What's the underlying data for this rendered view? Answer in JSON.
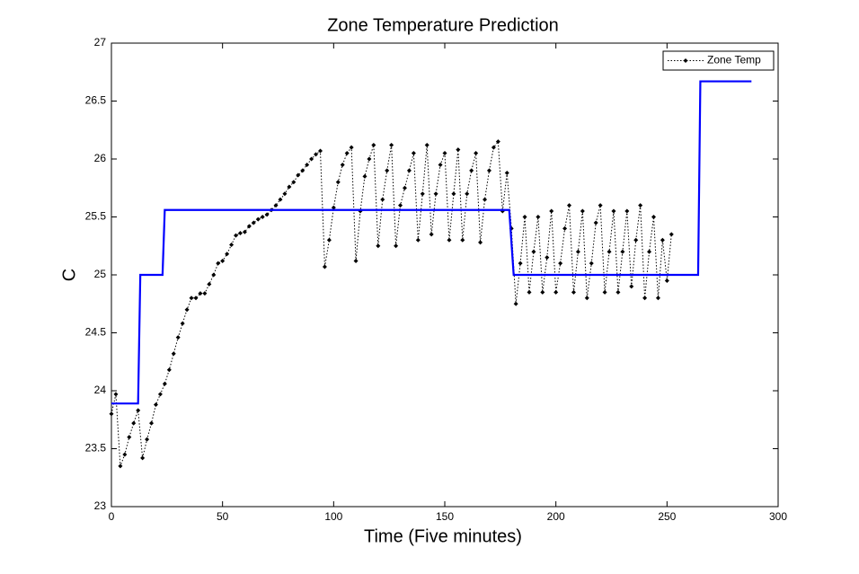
{
  "chart_data": {
    "type": "line",
    "title": "Zone Temperature Prediction",
    "x_label": "Time (Five minutes)",
    "y_label": "C",
    "xlim": [
      0,
      300
    ],
    "xticks": [
      0,
      50,
      100,
      150,
      200,
      250,
      300
    ],
    "ylim": [
      23,
      27
    ],
    "yticks": [
      23,
      23.5,
      24,
      24.5,
      25,
      25.5,
      26,
      26.5,
      27
    ],
    "legend": "upper right",
    "grid": false,
    "series": [
      {
        "name": "Zone Temp",
        "color": "#000000",
        "line_style": "dotted",
        "marker": "dot",
        "x": [
          0,
          2,
          4,
          6,
          8,
          10,
          12,
          14,
          16,
          18,
          20,
          22,
          24,
          26,
          28,
          30,
          32,
          34,
          36,
          38,
          40,
          42,
          44,
          46,
          48,
          50,
          52,
          54,
          56,
          58,
          60,
          62,
          64,
          66,
          68,
          70,
          72,
          74,
          76,
          78,
          80,
          82,
          84,
          86,
          88,
          90,
          92,
          94,
          96,
          98,
          100,
          102,
          104,
          106,
          108,
          110,
          112,
          114,
          116,
          118,
          120,
          122,
          124,
          126,
          128,
          130,
          132,
          134,
          136,
          138,
          140,
          142,
          144,
          146,
          148,
          150,
          152,
          154,
          156,
          158,
          160,
          162,
          164,
          166,
          168,
          170,
          172,
          174,
          176,
          178,
          180,
          182,
          184,
          186,
          188,
          190,
          192,
          194,
          196,
          198,
          200,
          202,
          204,
          206,
          208,
          210,
          212,
          214,
          216,
          218,
          220,
          222,
          224,
          226,
          228,
          230,
          232,
          234,
          236,
          238,
          240,
          242,
          244,
          246,
          248,
          250,
          252
        ],
        "values": [
          23.8,
          23.97,
          23.35,
          23.45,
          23.6,
          23.72,
          23.83,
          23.42,
          23.58,
          23.72,
          23.88,
          23.97,
          24.06,
          24.18,
          24.32,
          24.46,
          24.58,
          24.7,
          24.8,
          24.8,
          24.84,
          24.84,
          24.92,
          25.0,
          25.1,
          25.12,
          25.18,
          25.26,
          25.34,
          25.36,
          25.37,
          25.42,
          25.45,
          25.48,
          25.5,
          25.52,
          25.56,
          25.6,
          25.65,
          25.7,
          25.76,
          25.8,
          25.86,
          25.9,
          25.95,
          26.0,
          26.04,
          26.07,
          25.07,
          25.3,
          25.58,
          25.8,
          25.95,
          26.05,
          26.1,
          25.12,
          25.55,
          25.85,
          26.0,
          26.12,
          25.25,
          25.65,
          25.9,
          26.12,
          25.25,
          25.6,
          25.75,
          25.9,
          26.05,
          25.3,
          25.7,
          26.12,
          25.35,
          25.7,
          25.95,
          26.05,
          25.3,
          25.7,
          26.08,
          25.3,
          25.7,
          25.9,
          26.05,
          25.28,
          25.65,
          25.9,
          26.1,
          26.15,
          25.55,
          25.88,
          25.4,
          24.75,
          25.1,
          25.5,
          24.85,
          25.2,
          25.5,
          24.85,
          25.15,
          25.55,
          24.85,
          25.1,
          25.4,
          25.6,
          24.85,
          25.2,
          25.55,
          24.8,
          25.1,
          25.45,
          25.6,
          24.85,
          25.2,
          25.55,
          24.85,
          25.2,
          25.55,
          24.9,
          25.3,
          25.6,
          24.8,
          25.2,
          25.5,
          24.8,
          25.3,
          24.95,
          25.35
        ]
      },
      {
        "color": "#0000ff",
        "line_style": "solid",
        "marker": "none",
        "x": [
          0,
          12,
          13,
          23,
          24,
          179,
          181,
          264,
          265,
          288
        ],
        "values": [
          23.89,
          23.89,
          25.0,
          25.0,
          25.56,
          25.56,
          25.0,
          25.0,
          26.67,
          26.67
        ]
      }
    ]
  }
}
